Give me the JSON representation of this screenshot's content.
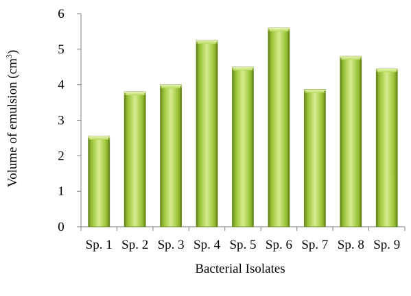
{
  "chart_data": {
    "type": "bar",
    "title": "",
    "xlabel": "Bacterial Isolates",
    "ylabel": {
      "prefix": "Volume of emulsion (cm",
      "superscript": "3",
      "suffix": ")"
    },
    "categories": [
      "Sp. 1",
      "Sp. 2",
      "Sp. 3",
      "Sp. 4",
      "Sp. 5",
      "Sp. 6",
      "Sp. 7",
      "Sp. 8",
      "Sp. 9"
    ],
    "values": [
      2.55,
      3.8,
      4.0,
      5.25,
      4.5,
      5.6,
      3.87,
      4.8,
      4.45
    ],
    "ylim": [
      0,
      6
    ],
    "yticks": [
      0,
      1,
      2,
      3,
      4,
      5,
      6
    ],
    "grid": false,
    "legend": "none",
    "colors": {
      "bar_light": "#d6ec8d",
      "bar_mid": "#a7cc49",
      "bar_dark": "#7b9d22",
      "bar_edge": "#6f8f1e",
      "axis": "#7f7f7f"
    }
  }
}
